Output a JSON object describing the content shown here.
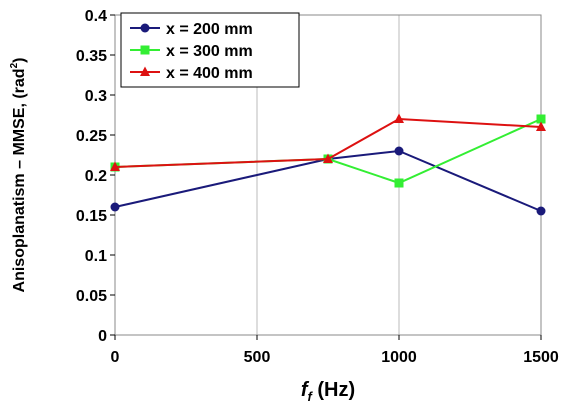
{
  "chart_data": {
    "type": "line",
    "xlabel_main": "f",
    "xlabel_sub": "f",
    "xlabel_unit": " (Hz)",
    "ylabel_main": "Anisoplanatism – MMSE, (rad",
    "ylabel_sup": "2",
    "ylabel_end": ")",
    "xlim": [
      0,
      1500
    ],
    "ylim": [
      0,
      0.4
    ],
    "x_ticks": [
      0,
      500,
      1000,
      1500
    ],
    "x_tick_labels": [
      "0",
      "500",
      "1000",
      "1500"
    ],
    "y_ticks": [
      0,
      0.05,
      0.1,
      0.15,
      0.2,
      0.25,
      0.3,
      0.35,
      0.4
    ],
    "y_tick_labels": [
      "0",
      "0.05",
      "0.1",
      "0.15",
      "0.2",
      "0.25",
      "0.3",
      "0.35",
      "0.4"
    ],
    "grid": "vertical",
    "legend_position": "top-left",
    "series": [
      {
        "name": "x = 200 mm",
        "color": "#1a1a7a",
        "marker": "circle",
        "x": [
          0,
          750,
          1000,
          1500
        ],
        "y": [
          0.16,
          0.22,
          0.23,
          0.155
        ]
      },
      {
        "name": "x = 300 mm",
        "color": "#33ee33",
        "marker": "square",
        "x": [
          0,
          750,
          1000,
          1500
        ],
        "y": [
          0.21,
          0.22,
          0.19,
          0.27
        ]
      },
      {
        "name": "x = 400 mm",
        "color": "#dd1111",
        "marker": "triangle",
        "x": [
          0,
          750,
          1000,
          1500
        ],
        "y": [
          0.21,
          0.22,
          0.27,
          0.26
        ]
      }
    ]
  }
}
